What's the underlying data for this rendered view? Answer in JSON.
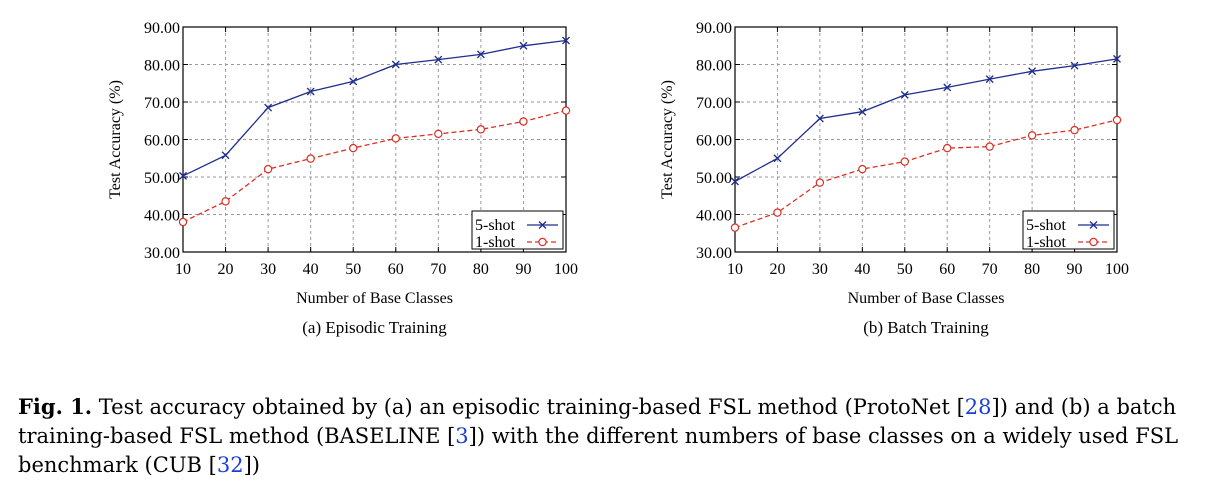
{
  "chart_data": [
    {
      "type": "line",
      "title": "(a) Episodic Training",
      "xlabel": "Number of Base Classes",
      "ylabel": "Test Accuracy (%)",
      "xlim": [
        10,
        100
      ],
      "ylim": [
        30,
        90
      ],
      "xticks": [
        "10",
        "20",
        "30",
        "40",
        "50",
        "60",
        "70",
        "80",
        "90",
        "100"
      ],
      "yticks": [
        "30.00",
        "40.00",
        "50.00",
        "60.00",
        "70.00",
        "80.00",
        "90.00"
      ],
      "grid": true,
      "legend": "bottom-right",
      "x": [
        10,
        20,
        30,
        40,
        50,
        60,
        70,
        80,
        90,
        100
      ],
      "series": [
        {
          "name": "5-shot",
          "color": "#1f2f8f",
          "marker": "x",
          "dash": "solid",
          "values": [
            50.3,
            55.8,
            68.5,
            72.8,
            75.5,
            80.0,
            81.3,
            82.7,
            85.0,
            86.4
          ]
        },
        {
          "name": "1-shot",
          "color": "#d93025",
          "marker": "o",
          "dash": "dashed",
          "values": [
            38.0,
            43.5,
            52.1,
            54.9,
            57.7,
            60.3,
            61.5,
            62.7,
            64.8,
            67.7
          ]
        }
      ]
    },
    {
      "type": "line",
      "title": "(b) Batch Training",
      "xlabel": "Number of Base Classes",
      "ylabel": "Test Accuracy (%)",
      "xlim": [
        10,
        100
      ],
      "ylim": [
        30,
        90
      ],
      "xticks": [
        "10",
        "20",
        "30",
        "40",
        "50",
        "60",
        "70",
        "80",
        "90",
        "100"
      ],
      "yticks": [
        "30.00",
        "40.00",
        "50.00",
        "60.00",
        "70.00",
        "80.00",
        "90.00"
      ],
      "grid": true,
      "legend": "bottom-right",
      "x": [
        10,
        20,
        30,
        40,
        50,
        60,
        70,
        80,
        90,
        100
      ],
      "series": [
        {
          "name": "5-shot",
          "color": "#1f2f8f",
          "marker": "x",
          "dash": "solid",
          "values": [
            48.8,
            55.0,
            65.6,
            67.4,
            71.9,
            73.9,
            76.1,
            78.2,
            79.7,
            81.5
          ]
        },
        {
          "name": "1-shot",
          "color": "#d93025",
          "marker": "o",
          "dash": "dashed",
          "values": [
            36.5,
            40.5,
            48.5,
            52.1,
            54.1,
            57.7,
            58.1,
            61.1,
            62.5,
            65.2
          ]
        }
      ]
    }
  ],
  "caption": {
    "label": "Fig. 1.",
    "part1": " Test accuracy obtained by (a) an episodic training-based FSL method (ProtoNet [",
    "ref1": "28",
    "part2": "]) and (b) a batch training-based FSL method (BASELINE [",
    "ref2": "3",
    "part3": "]) with the different numbers of base classes on a widely used FSL benchmark (CUB [",
    "ref3": "32",
    "part4": "])"
  }
}
